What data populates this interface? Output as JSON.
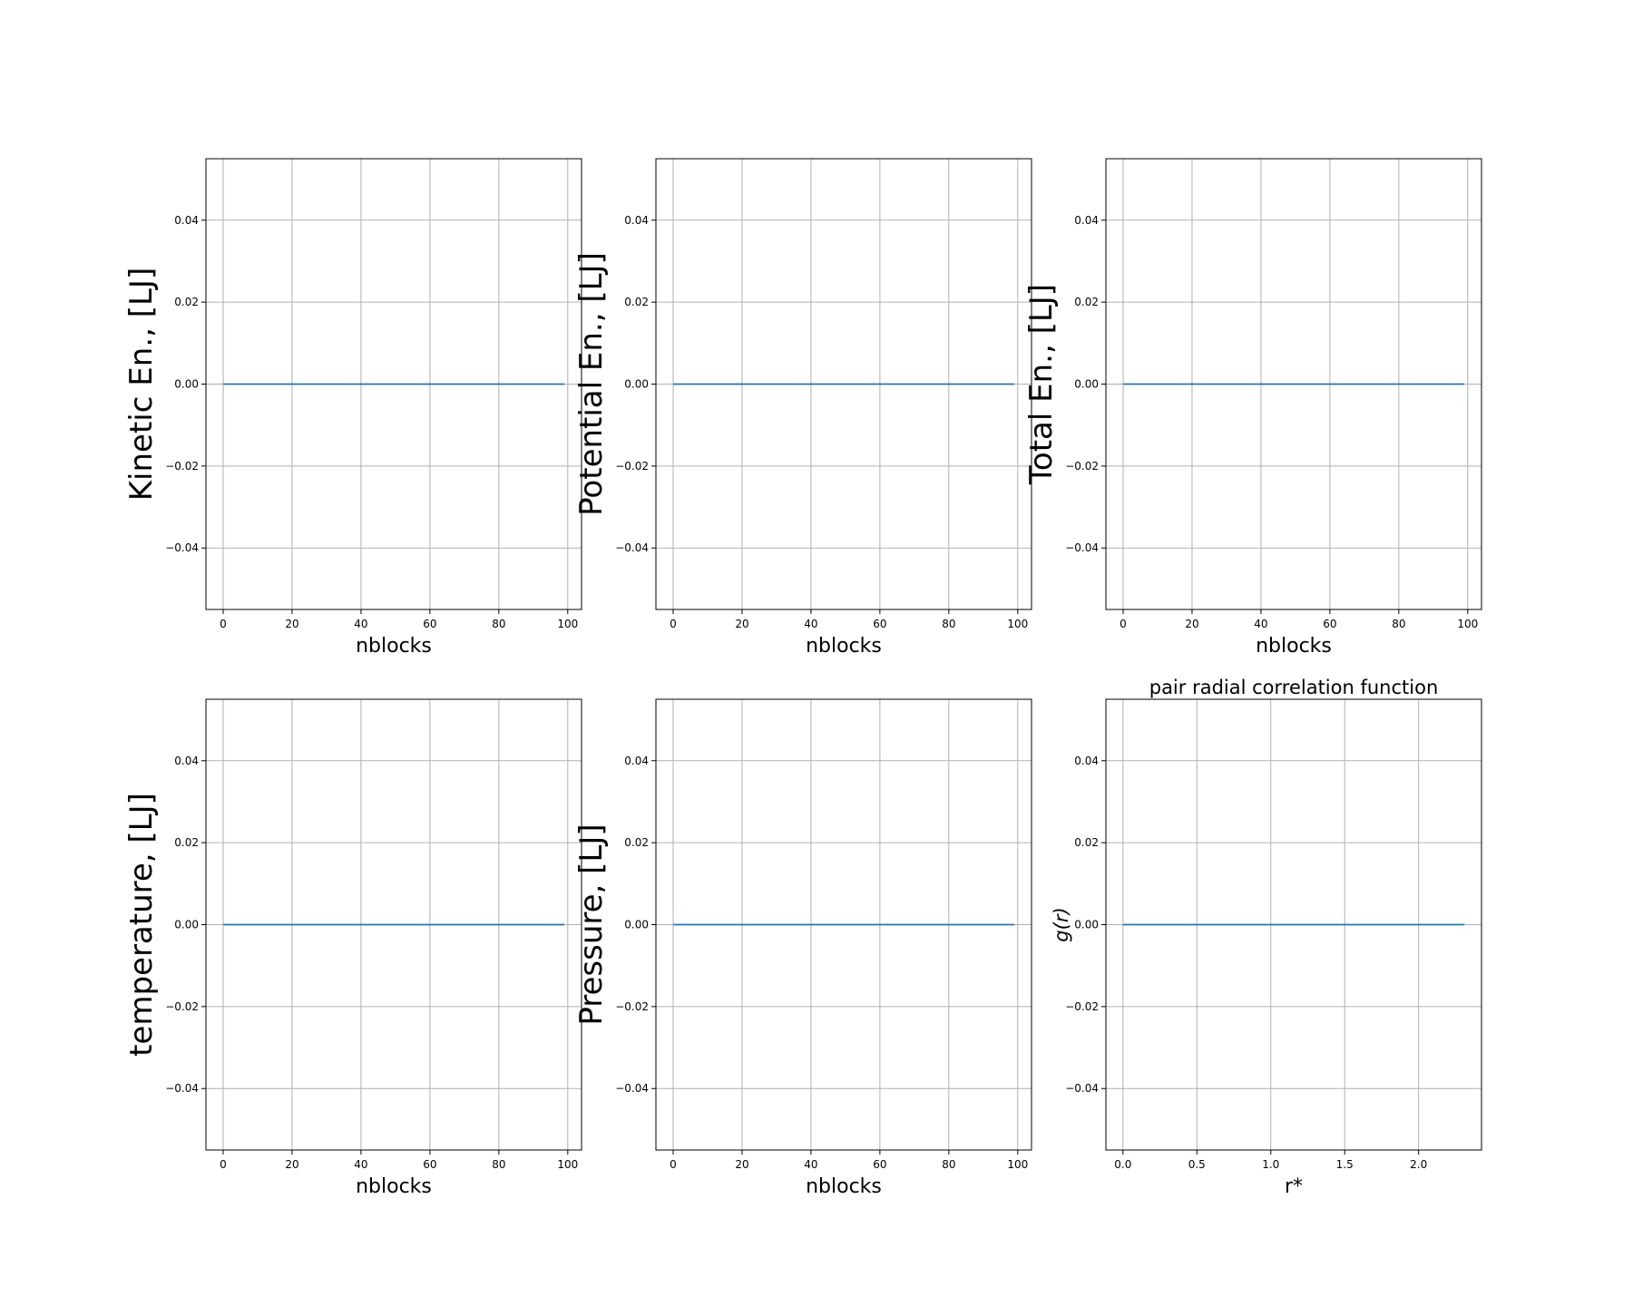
{
  "chart_data": [
    {
      "type": "line",
      "title": "",
      "xlabel": "nblocks",
      "ylabel": "Kinetic En., [LJ]",
      "xlim": [
        -5,
        104
      ],
      "ylim": [
        -0.055,
        0.055
      ],
      "xticks": [
        0,
        20,
        40,
        60,
        80,
        100
      ],
      "yticks": [
        -0.04,
        -0.02,
        0.0,
        0.02,
        0.04
      ],
      "xtick_labels": [
        "0",
        "20",
        "40",
        "60",
        "80",
        "100"
      ],
      "ytick_labels": [
        "−0.04",
        "−0.02",
        "0.00",
        "0.02",
        "0.04"
      ],
      "grid": true,
      "series": [
        {
          "x": [
            0,
            99
          ],
          "y": [
            0,
            0
          ],
          "color": "#1f77b4"
        }
      ]
    },
    {
      "type": "line",
      "title": "",
      "xlabel": "nblocks",
      "ylabel": "Potential En., [LJ]",
      "xlim": [
        -5,
        104
      ],
      "ylim": [
        -0.055,
        0.055
      ],
      "xticks": [
        0,
        20,
        40,
        60,
        80,
        100
      ],
      "yticks": [
        -0.04,
        -0.02,
        0.0,
        0.02,
        0.04
      ],
      "xtick_labels": [
        "0",
        "20",
        "40",
        "60",
        "80",
        "100"
      ],
      "ytick_labels": [
        "−0.04",
        "−0.02",
        "0.00",
        "0.02",
        "0.04"
      ],
      "grid": true,
      "series": [
        {
          "x": [
            0,
            99
          ],
          "y": [
            0,
            0
          ],
          "color": "#1f77b4"
        }
      ]
    },
    {
      "type": "line",
      "title": "",
      "xlabel": "nblocks",
      "ylabel": "Total En., [LJ]",
      "xlim": [
        -5,
        104
      ],
      "ylim": [
        -0.055,
        0.055
      ],
      "xticks": [
        0,
        20,
        40,
        60,
        80,
        100
      ],
      "yticks": [
        -0.04,
        -0.02,
        0.0,
        0.02,
        0.04
      ],
      "xtick_labels": [
        "0",
        "20",
        "40",
        "60",
        "80",
        "100"
      ],
      "ytick_labels": [
        "−0.04",
        "−0.02",
        "0.00",
        "0.02",
        "0.04"
      ],
      "grid": true,
      "series": [
        {
          "x": [
            0,
            99
          ],
          "y": [
            0,
            0
          ],
          "color": "#1f77b4"
        }
      ]
    },
    {
      "type": "line",
      "title": "",
      "xlabel": "nblocks",
      "ylabel": "temperature, [LJ]",
      "xlim": [
        -5,
        104
      ],
      "ylim": [
        -0.055,
        0.055
      ],
      "xticks": [
        0,
        20,
        40,
        60,
        80,
        100
      ],
      "yticks": [
        -0.04,
        -0.02,
        0.0,
        0.02,
        0.04
      ],
      "xtick_labels": [
        "0",
        "20",
        "40",
        "60",
        "80",
        "100"
      ],
      "ytick_labels": [
        "−0.04",
        "−0.02",
        "0.00",
        "0.02",
        "0.04"
      ],
      "grid": true,
      "series": [
        {
          "x": [
            0,
            99
          ],
          "y": [
            0,
            0
          ],
          "color": "#1f77b4"
        }
      ]
    },
    {
      "type": "line",
      "title": "",
      "xlabel": "nblocks",
      "ylabel": "Pressure, [LJ]",
      "xlim": [
        -5,
        104
      ],
      "ylim": [
        -0.055,
        0.055
      ],
      "xticks": [
        0,
        20,
        40,
        60,
        80,
        100
      ],
      "yticks": [
        -0.04,
        -0.02,
        0.0,
        0.02,
        0.04
      ],
      "xtick_labels": [
        "0",
        "20",
        "40",
        "60",
        "80",
        "100"
      ],
      "ytick_labels": [
        "−0.04",
        "−0.02",
        "0.00",
        "0.02",
        "0.04"
      ],
      "grid": true,
      "series": [
        {
          "x": [
            0,
            99
          ],
          "y": [
            0,
            0
          ],
          "color": "#1f77b4"
        }
      ]
    },
    {
      "type": "line",
      "title": "pair radial correlation function",
      "xlabel": "r*",
      "ylabel": "g(r)",
      "xlim": [
        -0.1155,
        2.4255
      ],
      "ylim": [
        -0.055,
        0.055
      ],
      "xticks": [
        0.0,
        0.5,
        1.0,
        1.5,
        2.0
      ],
      "yticks": [
        -0.04,
        -0.02,
        0.0,
        0.02,
        0.04
      ],
      "xtick_labels": [
        "0.0",
        "0.5",
        "1.0",
        "1.5",
        "2.0"
      ],
      "ytick_labels": [
        "−0.04",
        "−0.02",
        "0.00",
        "0.02",
        "0.04"
      ],
      "grid": true,
      "series": [
        {
          "x": [
            0.0,
            2.31
          ],
          "y": [
            0,
            0
          ],
          "color": "#1f77b4"
        }
      ]
    }
  ]
}
